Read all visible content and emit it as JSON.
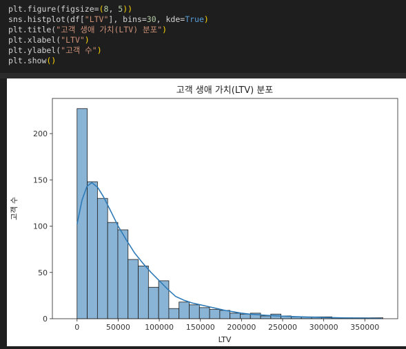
{
  "code_cell": {
    "lines": [
      [
        {
          "t": "plt.figure(figsize=",
          "c": "fn"
        },
        {
          "t": "(",
          "c": "paren"
        },
        {
          "t": "8",
          "c": "num"
        },
        {
          "t": ", ",
          "c": "fn"
        },
        {
          "t": "5",
          "c": "num"
        },
        {
          "t": ")",
          "c": "paren"
        },
        {
          "t": ")",
          "c": "paren"
        }
      ],
      [
        {
          "t": "sns.histplot(df[",
          "c": "fn"
        },
        {
          "t": "\"LTV\"",
          "c": "str"
        },
        {
          "t": "], bins=",
          "c": "fn"
        },
        {
          "t": "30",
          "c": "num"
        },
        {
          "t": ", kde=",
          "c": "fn"
        },
        {
          "t": "True",
          "c": "kw"
        },
        {
          "t": ")",
          "c": "paren"
        }
      ],
      [
        {
          "t": "plt.title(",
          "c": "fn"
        },
        {
          "t": "\"고객 생애 가치(LTV) 분포\"",
          "c": "str"
        },
        {
          "t": ")",
          "c": "paren"
        }
      ],
      [
        {
          "t": "plt.xlabel(",
          "c": "fn"
        },
        {
          "t": "\"LTV\"",
          "c": "str"
        },
        {
          "t": ")",
          "c": "paren"
        }
      ],
      [
        {
          "t": "plt.ylabel(",
          "c": "fn"
        },
        {
          "t": "\"고객 수\"",
          "c": "str"
        },
        {
          "t": ")",
          "c": "paren"
        }
      ],
      [
        {
          "t": "plt.show",
          "c": "fn"
        },
        {
          "t": "()",
          "c": "paren"
        }
      ]
    ],
    "colors": {
      "kw": "#569cd6",
      "str": "#ce9178",
      "num": "#b5cea8",
      "fn": "#d4d4d4",
      "paren": "#ffd700"
    }
  },
  "chart_data": {
    "type": "bar",
    "title": "고객 생애 가치(LTV) 분포",
    "xlabel": "LTV",
    "ylabel": "고객 수",
    "xlim": [
      -30000,
      390000
    ],
    "ylim": [
      0,
      238
    ],
    "xticks": [
      0,
      50000,
      100000,
      150000,
      200000,
      250000,
      300000,
      350000
    ],
    "xtick_labels": [
      "0",
      "50000",
      "100000",
      "150000",
      "200000",
      "250000",
      "300000",
      "350000"
    ],
    "yticks": [
      0,
      50,
      100,
      150,
      200
    ],
    "ytick_labels": [
      "0",
      "50",
      "100",
      "150",
      "200"
    ],
    "bin_start": 0,
    "bin_width": 12400,
    "counts": [
      227,
      148,
      130,
      104,
      96,
      64,
      57,
      34,
      41,
      11,
      18,
      15,
      12,
      10,
      9,
      6,
      5,
      6,
      3,
      5,
      3,
      2,
      2,
      2,
      2,
      1,
      1,
      1,
      1,
      1
    ],
    "kde": {
      "x": [
        0,
        6000,
        12000,
        18000,
        25000,
        32000,
        40000,
        50000,
        60000,
        70000,
        80000,
        90000,
        100000,
        110000,
        120000,
        130000,
        140000,
        150000,
        160000,
        170000,
        180000,
        190000,
        200000,
        210000,
        220000,
        230000,
        240000,
        250000,
        260000,
        270000,
        280000,
        290000,
        300000,
        310000,
        320000,
        330000,
        340000,
        350000,
        360000,
        370000
      ],
      "y": [
        102,
        128,
        143,
        147,
        142,
        132,
        118,
        100,
        85,
        71,
        60,
        50,
        41,
        32,
        24,
        20,
        17,
        15,
        13,
        11,
        9,
        7.5,
        6,
        5,
        4.3,
        3.7,
        3.2,
        2.8,
        2.4,
        2.1,
        1.8,
        1.6,
        1.4,
        1.2,
        1,
        0.8,
        0.7,
        0.6,
        0.4,
        0.2
      ]
    },
    "grid": false,
    "colors": {
      "bar_fill": "#8ab4d6",
      "bar_edge": "#1a1a1a",
      "kde": "#2e7ab6"
    }
  }
}
